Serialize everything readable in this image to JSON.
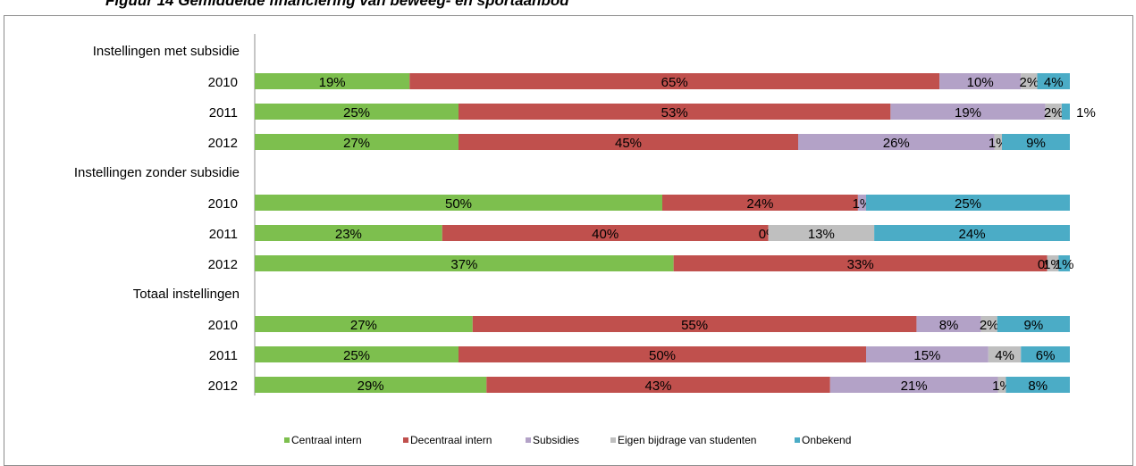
{
  "caption": "Figuur 14 Gemiddelde financiering van beweeg- en sportaanbod",
  "chart_data": {
    "type": "bar",
    "orientation": "horizontal",
    "stacked": true,
    "percent_stacked": true,
    "legend_position": "bottom",
    "series": [
      {
        "name": "Centraal intern",
        "color": "#7dbf4e"
      },
      {
        "name": "Decentraal intern",
        "color": "#c0504d"
      },
      {
        "name": "Subsidies",
        "color": "#b3a2c7"
      },
      {
        "name": "Eigen bijdrage van studenten",
        "color": "#bfbfbf"
      },
      {
        "name": "Onbekend",
        "color": "#4bacc6"
      }
    ],
    "groups": [
      {
        "label": "Instellingen met subsidie",
        "rows": [
          {
            "category": "2010",
            "values": [
              19,
              65,
              10,
              2,
              4
            ],
            "labels": [
              "19%",
              "65%",
              "10%",
              "2%",
              "4%"
            ]
          },
          {
            "category": "2011",
            "values": [
              25,
              53,
              19,
              2,
              1
            ],
            "labels": [
              "25%",
              "53%",
              "19%",
              "2%",
              "1%"
            ]
          },
          {
            "category": "2012",
            "values": [
              27,
              45,
              26,
              1,
              9
            ],
            "labels": [
              "27%",
              "45%",
              "26%",
              "1%",
              "9%"
            ]
          }
        ]
      },
      {
        "label": "Instellingen zonder subsidie",
        "rows": [
          {
            "category": "2010",
            "values": [
              50,
              24,
              1,
              0,
              25
            ],
            "labels": [
              "50%",
              "24%",
              "1%",
              "",
              "25%"
            ]
          },
          {
            "category": "2011",
            "values": [
              23,
              40,
              0,
              13,
              24
            ],
            "labels": [
              "23%",
              "40%",
              "0%",
              "13%",
              "24%"
            ]
          },
          {
            "category": "2012",
            "values": [
              37,
              33,
              0,
              1,
              1
            ],
            "labels": [
              "37%",
              "33%",
              "0%",
              "1%",
              "1%"
            ]
          }
        ]
      },
      {
        "label": "Totaal instellingen",
        "rows": [
          {
            "category": "2010",
            "values": [
              27,
              55,
              8,
              2,
              9
            ],
            "labels": [
              "27%",
              "55%",
              "8%",
              "2%",
              "9%"
            ]
          },
          {
            "category": "2011",
            "values": [
              25,
              50,
              15,
              4,
              6
            ],
            "labels": [
              "25%",
              "50%",
              "15%",
              "4%",
              "6%"
            ]
          },
          {
            "category": "2012",
            "values": [
              29,
              43,
              21,
              1,
              8
            ],
            "labels": [
              "29%",
              "43%",
              "21%",
              "1%",
              "8%"
            ]
          }
        ]
      }
    ]
  }
}
